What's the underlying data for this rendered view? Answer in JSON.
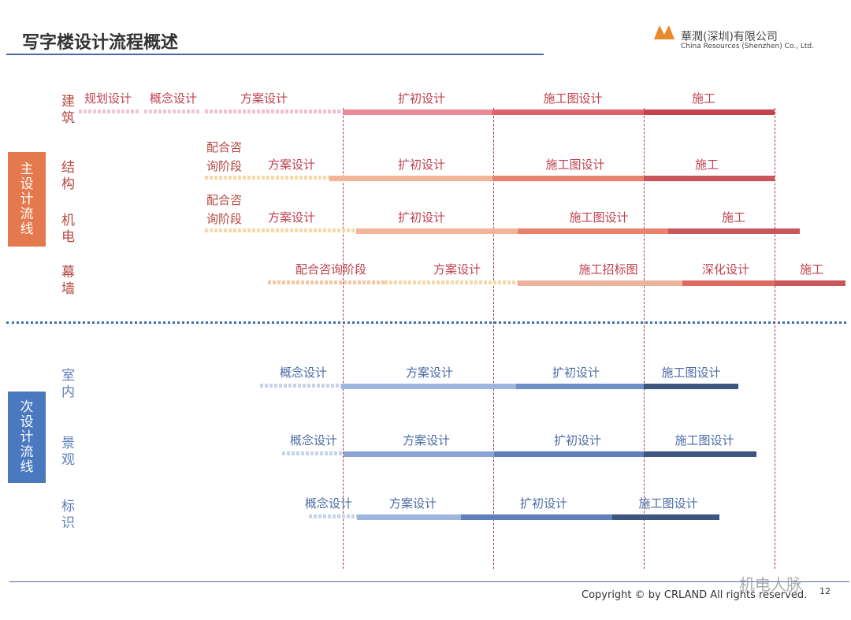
{
  "header": {
    "title": "写字楼设计流程概述",
    "company_cn": "華潤(深圳)有限公司",
    "company_en": "China Resources (Shenzhen) Co., Ltd."
  },
  "groups": [
    {
      "label": "主设计流线",
      "rows": [
        {
          "label": "建筑",
          "phases": [
            "规划设计",
            "概念设计",
            "方案设计",
            "扩初设计",
            "施工图设计",
            "施工"
          ]
        },
        {
          "label": "结构",
          "phases": [
            "配合咨询阶段",
            "方案设计",
            "扩初设计",
            "施工图设计",
            "施工"
          ]
        },
        {
          "label": "机电",
          "phases": [
            "配合咨询阶段",
            "方案设计",
            "扩初设计",
            "施工图设计",
            "施工"
          ]
        },
        {
          "label": "幕墙",
          "phases": [
            "配合咨询阶段",
            "方案设计",
            "施工招标图",
            "深化设计",
            "施工"
          ]
        }
      ]
    },
    {
      "label": "次设计流线",
      "rows": [
        {
          "label": "室内",
          "phases": [
            "概念设计",
            "方案设计",
            "扩初设计",
            "施工图设计"
          ]
        },
        {
          "label": "景观",
          "phases": [
            "概念设计",
            "方案设计",
            "扩初设计",
            "施工图设计"
          ]
        },
        {
          "label": "标识",
          "phases": [
            "概念设计",
            "方案设计",
            "扩初设计",
            "施工图设计"
          ]
        }
      ]
    }
  ],
  "footer": {
    "copyright": "Copyright © by CRLAND All rights reserved.",
    "page": "12",
    "watermark": "机电人脉"
  }
}
